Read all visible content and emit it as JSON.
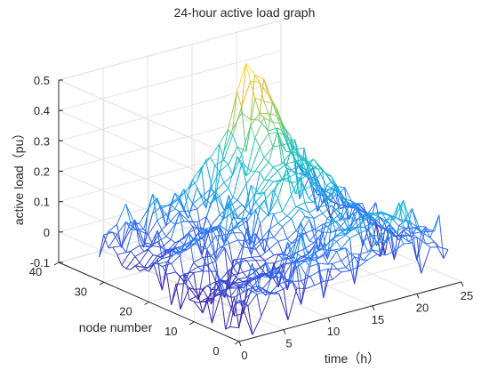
{
  "chart_data": {
    "type": "surface",
    "style": "mesh",
    "title": "24-hour active load graph",
    "xlabel": "time（h）",
    "ylabel": "node number",
    "zlabel": "active load（pu）",
    "xlim": [
      0,
      25
    ],
    "ylim": [
      0,
      40
    ],
    "zlim": [
      -0.1,
      0.5
    ],
    "x_ticks": [
      "0",
      "5",
      "10",
      "15",
      "20",
      "25"
    ],
    "y_ticks": [
      "0",
      "10",
      "20",
      "30",
      "40"
    ],
    "z_ticks": [
      "-0.1",
      "0",
      "0.1",
      "0.2",
      "0.3",
      "0.4",
      "0.5"
    ],
    "x_tick_values": [
      0,
      5,
      10,
      15,
      20,
      25
    ],
    "y_tick_values": [
      0,
      10,
      20,
      30,
      40
    ],
    "z_tick_values": [
      -0.1,
      0,
      0.1,
      0.2,
      0.3,
      0.4,
      0.5
    ],
    "x_range_data": [
      1,
      24
    ],
    "y_range_data": [
      1,
      33
    ],
    "colormap": "parula",
    "colormap_stops": [
      "#3e26a8",
      "#2f6bff",
      "#19b2e0",
      "#29c6b1",
      "#8ccb5e",
      "#f5b83a",
      "#f9fb0e"
    ],
    "grid": true,
    "view": "3d-default",
    "series": [
      {
        "name": "",
        "node": 32,
        "values": [
          0.03,
          0.05,
          0.08,
          0.06,
          0.04,
          0.08,
          0.1,
          0.12,
          0.11,
          0.13,
          0.14,
          0.16,
          0.19,
          0.22,
          0.28,
          0.38,
          0.46,
          0.44,
          0.4,
          0.34,
          0.22,
          0.15,
          0.1,
          0.07
        ]
      },
      {
        "name": "",
        "node": 20,
        "values": [
          0.02,
          0.03,
          0.04,
          0.05,
          0.06,
          0.06,
          0.08,
          0.09,
          0.08,
          0.07,
          0.09,
          0.1,
          0.12,
          0.15,
          0.18,
          0.17,
          0.16,
          0.18,
          0.2,
          0.17,
          0.12,
          0.09,
          0.05,
          0.03
        ]
      },
      {
        "name": "",
        "node": 6,
        "values": [
          0.01,
          0.0,
          0.02,
          0.03,
          0.0,
          0.02,
          0.03,
          0.02,
          0.04,
          0.05,
          0.06,
          0.05,
          0.07,
          0.08,
          0.09,
          0.1,
          0.11,
          0.12,
          0.14,
          0.13,
          0.11,
          0.09,
          0.07,
          0.05
        ]
      }
    ]
  }
}
